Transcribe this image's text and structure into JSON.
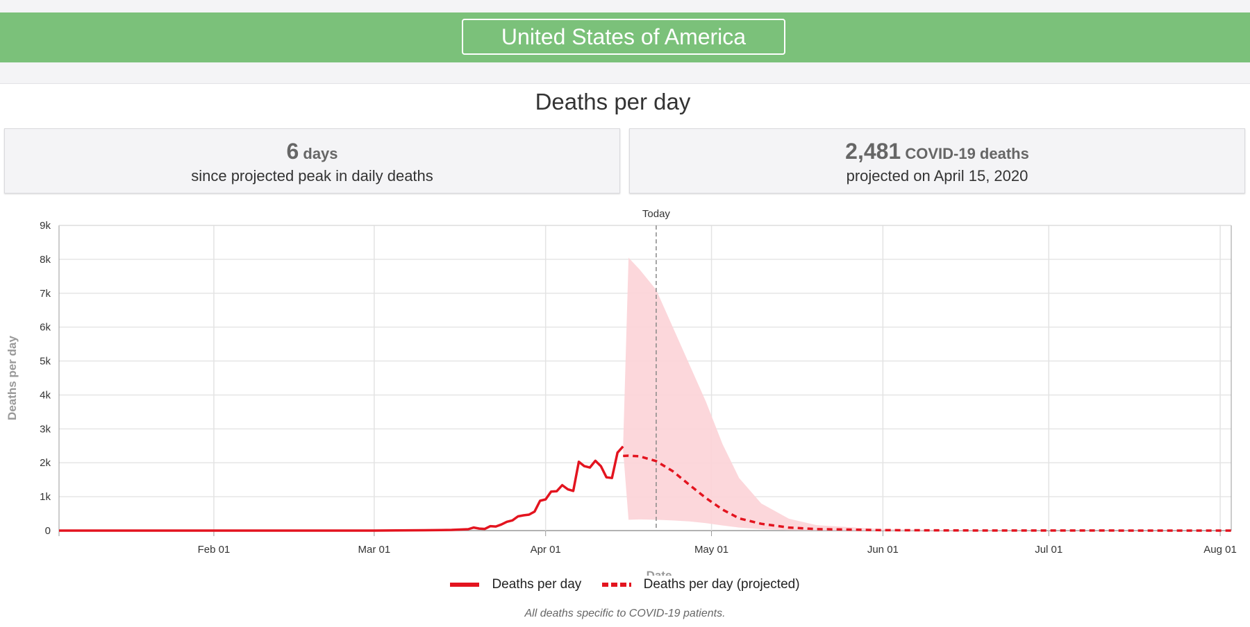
{
  "header": {
    "country": "United States of America"
  },
  "chart_title": "Deaths per day",
  "cards": {
    "peak": {
      "value": "6",
      "unit": "days",
      "caption": "since projected peak in daily deaths"
    },
    "projection": {
      "value": "2,481",
      "unit": "COVID-19 deaths",
      "caption": "projected on April 15, 2020"
    }
  },
  "legend": {
    "actual": "Deaths per day",
    "projected": "Deaths per day (projected)"
  },
  "footnote": "All deaths specific to COVID-19 patients.",
  "colors": {
    "line": "#e3141f",
    "band": "#fcd3d7",
    "banner": "#7bc17a"
  },
  "chart_data": {
    "type": "line",
    "title": "Deaths per day",
    "xlabel": "Date",
    "ylabel": "Deaths per day",
    "xlim": [
      "2020-01-04",
      "2020-08-03"
    ],
    "ylim": [
      0,
      9000
    ],
    "yticks": [
      0,
      1000,
      2000,
      3000,
      4000,
      5000,
      6000,
      7000,
      8000,
      9000
    ],
    "ytick_labels": [
      "0",
      "1k",
      "2k",
      "3k",
      "4k",
      "5k",
      "6k",
      "7k",
      "8k",
      "9k"
    ],
    "xticks": [
      "2020-02-01",
      "2020-03-01",
      "2020-04-01",
      "2020-05-01",
      "2020-06-01",
      "2020-07-01",
      "2020-08-01"
    ],
    "xtick_labels": [
      "Feb 01",
      "Mar 01",
      "Apr 01",
      "May 01",
      "Jun 01",
      "Jul 01",
      "Aug 01"
    ],
    "today": {
      "date": "2020-04-21",
      "label": "Today"
    },
    "grid": true,
    "legend_position": "bottom",
    "series": [
      {
        "name": "Deaths per day",
        "style": "solid",
        "x": [
          "2020-01-04",
          "2020-02-01",
          "2020-03-01",
          "2020-03-05",
          "2020-03-10",
          "2020-03-13",
          "2020-03-15",
          "2020-03-18",
          "2020-03-19",
          "2020-03-20",
          "2020-03-21",
          "2020-03-22",
          "2020-03-23",
          "2020-03-24",
          "2020-03-25",
          "2020-03-26",
          "2020-03-27",
          "2020-03-28",
          "2020-03-29",
          "2020-03-30",
          "2020-03-31",
          "2020-04-01",
          "2020-04-02",
          "2020-04-03",
          "2020-04-04",
          "2020-04-05",
          "2020-04-06",
          "2020-04-07",
          "2020-04-08",
          "2020-04-09",
          "2020-04-10",
          "2020-04-11",
          "2020-04-12",
          "2020-04-13",
          "2020-04-14",
          "2020-04-15"
        ],
        "y": [
          0,
          0,
          0,
          5,
          10,
          15,
          20,
          40,
          90,
          60,
          50,
          130,
          120,
          180,
          260,
          300,
          420,
          450,
          470,
          560,
          880,
          920,
          1150,
          1160,
          1340,
          1220,
          1170,
          2030,
          1900,
          1860,
          2060,
          1900,
          1570,
          1550,
          2300,
          2481
        ]
      },
      {
        "name": "Deaths per day (projected)",
        "style": "dashed",
        "x": [
          "2020-04-15",
          "2020-04-16",
          "2020-04-18",
          "2020-04-21",
          "2020-04-24",
          "2020-04-27",
          "2020-04-30",
          "2020-05-03",
          "2020-05-06",
          "2020-05-10",
          "2020-05-15",
          "2020-05-20",
          "2020-05-31",
          "2020-06-15",
          "2020-07-01",
          "2020-08-03"
        ],
        "y": [
          2200,
          2210,
          2190,
          2050,
          1750,
          1350,
          960,
          620,
          360,
          200,
          90,
          45,
          15,
          5,
          2,
          0
        ]
      }
    ],
    "bands": [
      {
        "series": "Deaths per day (projected)",
        "x": [
          "2020-04-15",
          "2020-04-16",
          "2020-04-18",
          "2020-04-21",
          "2020-04-24",
          "2020-04-27",
          "2020-04-30",
          "2020-05-03",
          "2020-05-06",
          "2020-05-10",
          "2020-05-15",
          "2020-05-20",
          "2020-05-31",
          "2020-06-15",
          "2020-07-01",
          "2020-08-03"
        ],
        "lower": [
          2400,
          320,
          330,
          320,
          300,
          270,
          220,
          150,
          90,
          40,
          15,
          5,
          0,
          0,
          0,
          0
        ],
        "upper": [
          2400,
          8050,
          7700,
          7100,
          6000,
          4900,
          3800,
          2550,
          1550,
          800,
          350,
          160,
          50,
          10,
          3,
          0
        ]
      }
    ]
  }
}
